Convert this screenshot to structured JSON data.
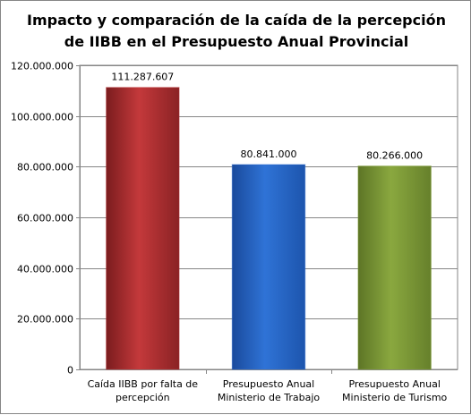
{
  "chart_data": {
    "type": "bar",
    "title_lines": [
      "Impacto y comparación de la caída de la percepción",
      "de IIBB en el Presupuesto Anual Provincial"
    ],
    "categories": [
      [
        "Caída IIBB por falta de",
        "percepción"
      ],
      [
        "Presupuesto Anual",
        "Ministerio de Trabajo"
      ],
      [
        "Presupuesto Anual",
        "Ministerio de Turismo"
      ]
    ],
    "values": [
      111287607,
      80841000,
      80266000
    ],
    "data_labels": [
      "111.287.607",
      "80.841.000",
      "80.266.000"
    ],
    "bar_colors": [
      "#c0393b",
      "#2f6fd1",
      "#86a43d"
    ],
    "ylim": [
      0,
      120000000
    ],
    "yticks": [
      0,
      20000000,
      40000000,
      60000000,
      80000000,
      100000000,
      120000000
    ],
    "ytick_labels": [
      "0",
      "20.000.000",
      "40.000.000",
      "60.000.000",
      "80.000.000",
      "100.000.000",
      "120.000.000"
    ],
    "grid": true,
    "legend": "none"
  }
}
